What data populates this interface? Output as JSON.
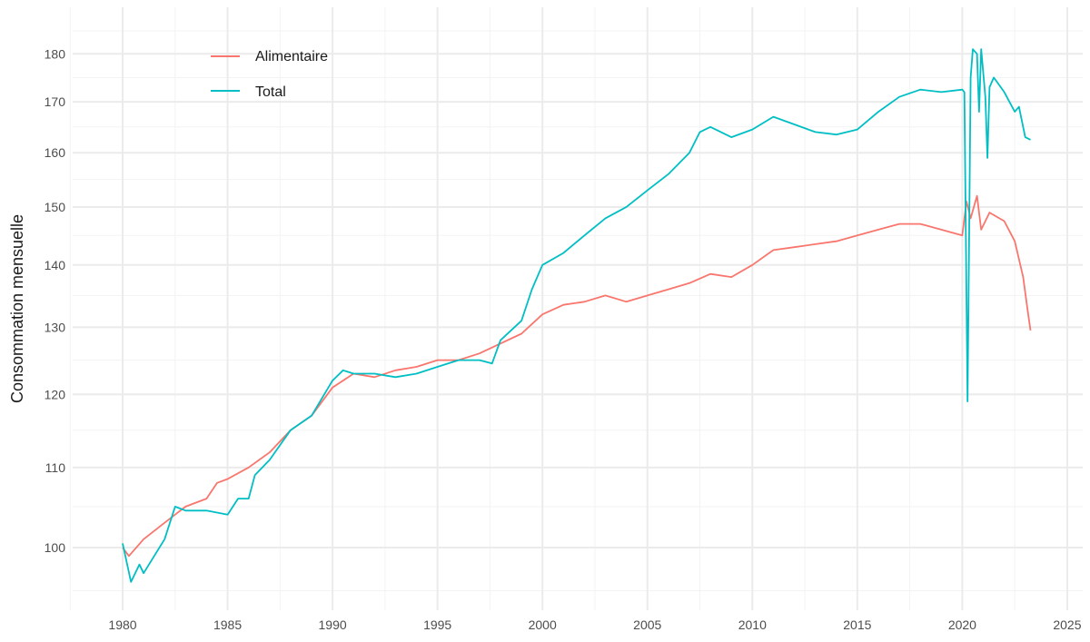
{
  "chart_data": {
    "type": "line",
    "title": "",
    "xlabel": "",
    "ylabel": "Consommation mensuelle",
    "y_scale": "log",
    "xlim": [
      1978,
      2026
    ],
    "ylim": [
      95,
      186
    ],
    "x_ticks": [
      "1980",
      "1985",
      "1990",
      "1995",
      "2000",
      "2005",
      "2010",
      "2015",
      "2020",
      "2025"
    ],
    "y_ticks": [
      "100",
      "110",
      "120",
      "130",
      "140",
      "150",
      "160",
      "170",
      "180"
    ],
    "grid": true,
    "legend_position": "top-left",
    "series": [
      {
        "name": "Alimentaire",
        "color": "#F8766D",
        "x": [
          1980,
          1980.3,
          1981,
          1982,
          1982.5,
          1983,
          1984,
          1984.5,
          1985,
          1986,
          1987,
          1988,
          1989,
          1990,
          1991,
          1992,
          1993,
          1994,
          1995,
          1996,
          1997,
          1998,
          1999,
          2000,
          2001,
          2002,
          2003,
          2004,
          2005,
          2006,
          2007,
          2008,
          2009,
          2010,
          2011,
          2012,
          2013,
          2014,
          2015,
          2016,
          2017,
          2018,
          2019,
          2020,
          2020.2,
          2020.4,
          2020.7,
          2020.9,
          2021.3,
          2022,
          2022.5,
          2022.9,
          2023.1,
          2023.25
        ],
        "y": [
          100,
          99,
          101,
          103,
          104,
          105,
          106,
          108,
          108.5,
          110,
          112,
          115,
          117,
          121,
          123,
          122.5,
          123.5,
          124,
          125,
          125,
          126,
          127.5,
          129,
          132,
          133.5,
          134,
          135,
          134,
          135,
          136,
          137,
          138.5,
          138,
          140,
          142.5,
          143,
          143.5,
          144,
          145,
          146,
          147,
          147,
          146,
          145,
          151,
          148,
          152,
          146,
          149,
          147.5,
          144,
          138,
          133,
          129.5
        ]
      },
      {
        "name": "Total",
        "color": "#00BFC4",
        "x": [
          1980,
          1980.4,
          1980.8,
          1981,
          1982,
          1982.5,
          1983,
          1984,
          1985,
          1985.5,
          1986,
          1986.3,
          1987,
          1988,
          1989,
          1990,
          1990.5,
          1991,
          1992,
          1993,
          1994,
          1995,
          1996,
          1997,
          1997.6,
          1998,
          1999,
          1999.5,
          2000,
          2001,
          2002,
          2003,
          2004,
          2005,
          2006,
          2007,
          2007.5,
          2008,
          2009,
          2010,
          2011,
          2012,
          2013,
          2014,
          2015,
          2016,
          2017,
          2018,
          2019,
          2020,
          2020.1,
          2020.25,
          2020.4,
          2020.5,
          2020.7,
          2020.8,
          2020.9,
          2021.1,
          2021.2,
          2021.3,
          2021.5,
          2022,
          2022.5,
          2022.7,
          2023,
          2023.25
        ],
        "y": [
          100.5,
          96,
          98,
          97,
          101,
          105,
          104.5,
          104.5,
          104,
          106,
          106,
          109,
          111,
          115,
          117,
          122,
          123.5,
          123,
          123,
          122.5,
          123,
          124,
          125,
          125,
          124.5,
          128,
          131,
          136,
          140,
          142,
          145,
          148,
          150,
          153,
          156,
          160,
          164,
          165,
          163,
          164.5,
          167,
          165.5,
          164,
          163.5,
          164.5,
          168,
          171,
          172.5,
          172,
          172.5,
          172,
          119,
          175,
          181,
          180,
          168,
          181,
          171,
          159,
          173,
          175,
          172,
          168,
          169,
          163,
          162.5
        ]
      }
    ]
  }
}
